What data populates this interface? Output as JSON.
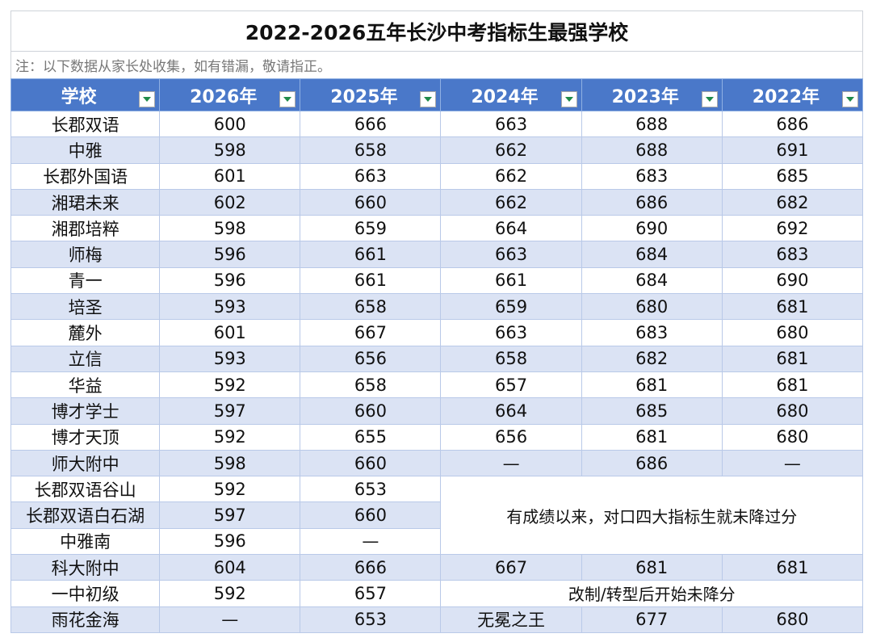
{
  "title": "2022-2026五年长沙中考指标生最强学校",
  "note": "注：以下数据从家长处收集，如有错漏，敬请指正。",
  "headers": [
    "学校",
    "2026年",
    "2025年",
    "2024年",
    "2023年",
    "2022年"
  ],
  "rows": [
    {
      "school": "长郡双语",
      "y2026": "600",
      "y2025": "666",
      "y2024": "663",
      "y2023": "688",
      "y2022": "686"
    },
    {
      "school": "中雅",
      "y2026": "598",
      "y2025": "658",
      "y2024": "662",
      "y2023": "688",
      "y2022": "691"
    },
    {
      "school": "长郡外国语",
      "y2026": "601",
      "y2025": "663",
      "y2024": "662",
      "y2023": "683",
      "y2022": "685"
    },
    {
      "school": "湘珺未来",
      "y2026": "602",
      "y2025": "660",
      "y2024": "662",
      "y2023": "686",
      "y2022": "682"
    },
    {
      "school": "湘郡培粹",
      "y2026": "598",
      "y2025": "659",
      "y2024": "664",
      "y2023": "690",
      "y2022": "692"
    },
    {
      "school": "师梅",
      "y2026": "596",
      "y2025": "661",
      "y2024": "663",
      "y2023": "684",
      "y2022": "683"
    },
    {
      "school": "青一",
      "y2026": "596",
      "y2025": "661",
      "y2024": "661",
      "y2023": "684",
      "y2022": "690"
    },
    {
      "school": "培圣",
      "y2026": "593",
      "y2025": "658",
      "y2024": "659",
      "y2023": "680",
      "y2022": "681"
    },
    {
      "school": "麓外",
      "y2026": "601",
      "y2025": "667",
      "y2024": "663",
      "y2023": "683",
      "y2022": "680"
    },
    {
      "school": "立信",
      "y2026": "593",
      "y2025": "656",
      "y2024": "658",
      "y2023": "682",
      "y2022": "681"
    },
    {
      "school": "华益",
      "y2026": "592",
      "y2025": "658",
      "y2024": "657",
      "y2023": "681",
      "y2022": "681"
    },
    {
      "school": "博才学士",
      "y2026": "597",
      "y2025": "660",
      "y2024": "664",
      "y2023": "685",
      "y2022": "680"
    },
    {
      "school": "博才天顶",
      "y2026": "592",
      "y2025": "655",
      "y2024": "656",
      "y2023": "681",
      "y2022": "680"
    },
    {
      "school": "师大附中",
      "y2026": "598",
      "y2025": "660",
      "y2024": "—",
      "y2023": "686",
      "y2022": "—"
    },
    {
      "school": "长郡双语谷山",
      "y2026": "592",
      "y2025": "653"
    },
    {
      "school": "长郡双语白石湖",
      "y2026": "597",
      "y2025": "660"
    },
    {
      "school": "中雅南",
      "y2026": "596",
      "y2025": "—"
    },
    {
      "school": "科大附中",
      "y2026": "604",
      "y2025": "666",
      "y2024": "667",
      "y2023": "681",
      "y2022": "681"
    },
    {
      "school": "一中初级",
      "y2026": "592",
      "y2025": "657"
    },
    {
      "school": "雨花金海",
      "y2026": "—",
      "y2025": "653",
      "y2024": "无冕之王",
      "y2023": "677",
      "y2022": "680"
    }
  ],
  "merged_notes": {
    "since_record": "有成绩以来，对口四大指标生就未降过分",
    "restructure": "改制/转型后开始未降分"
  },
  "colors": {
    "header_bg": "#4a78c9",
    "row_alt_bg": "#dbe3f4",
    "filter_arrow": "#1f8a4a"
  },
  "icons": {
    "filter": "filter-dropdown-icon"
  }
}
